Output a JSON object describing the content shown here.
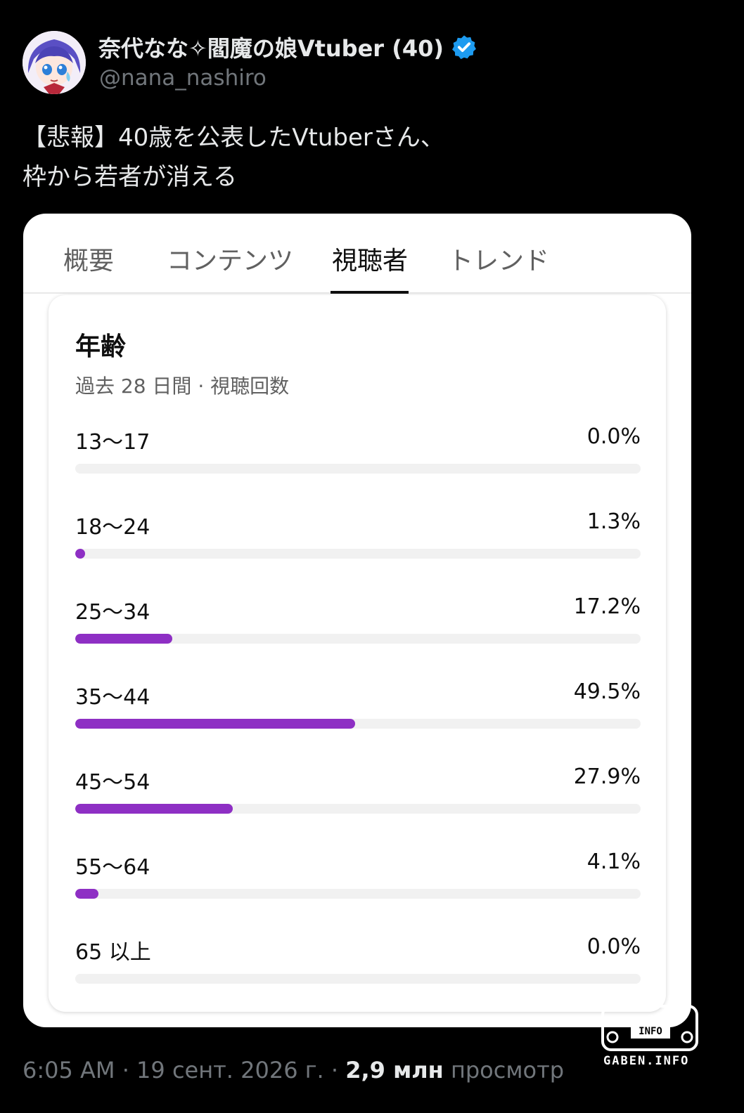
{
  "tweet": {
    "display_name": "奈代なな✧閻魔の娘Vtuber (40)",
    "handle": "@nana_nashiro",
    "text_line1": "【悲報】40歳を公表したVtuberさん、",
    "text_line2": "枠から若者が消える",
    "timestamp": "6:05 AM · 19 сент. 2026 г. · ",
    "views_count": "2,9 млн",
    "views_label": " просмотр"
  },
  "card": {
    "tabs": [
      {
        "label": "概要"
      },
      {
        "label": "コンテンツ"
      },
      {
        "label": "視聴者"
      },
      {
        "label": "トレンド"
      }
    ],
    "active_tab": "視聴者",
    "panel_title": "年齢",
    "panel_subtitle": "過去 28 日間 · 視聴回数"
  },
  "chart_data": {
    "type": "bar",
    "categories": [
      "13〜17",
      "18〜24",
      "25〜34",
      "35〜44",
      "45〜54",
      "55〜64",
      "65 以上"
    ],
    "values": [
      0.0,
      1.3,
      17.2,
      49.5,
      27.9,
      4.1,
      0.0
    ],
    "value_labels": [
      "0.0%",
      "1.3%",
      "17.2%",
      "49.5%",
      "27.9%",
      "4.1%",
      "0.0%"
    ],
    "xlim": [
      0,
      100
    ],
    "bar_color": "#8e2fc4",
    "track_color": "#f1f1f1"
  },
  "watermark": {
    "text": "GABEN.INFO",
    "icon_text": "INFO"
  },
  "colors": {
    "background": "#000000",
    "verified": "#1d9bf0",
    "accent_bar": "#8e2fc4"
  }
}
